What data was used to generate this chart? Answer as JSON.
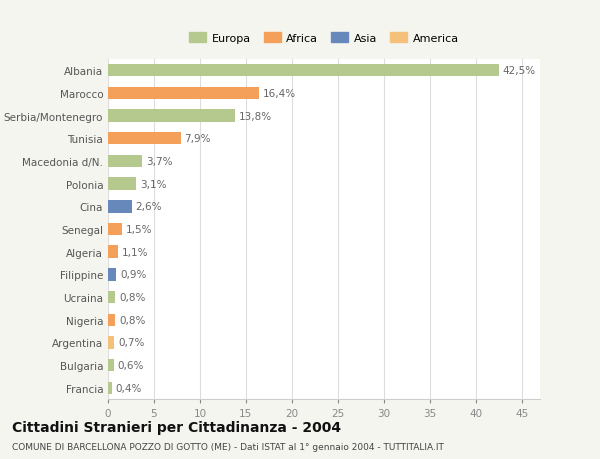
{
  "categories": [
    "Francia",
    "Bulgaria",
    "Argentina",
    "Nigeria",
    "Ucraina",
    "Filippine",
    "Algeria",
    "Senegal",
    "Cina",
    "Polonia",
    "Macedonia d/N.",
    "Tunisia",
    "Serbia/Montenegro",
    "Marocco",
    "Albania"
  ],
  "values": [
    0.4,
    0.6,
    0.7,
    0.8,
    0.8,
    0.9,
    1.1,
    1.5,
    2.6,
    3.1,
    3.7,
    7.9,
    13.8,
    16.4,
    42.5
  ],
  "labels": [
    "0,4%",
    "0,6%",
    "0,7%",
    "0,8%",
    "0,8%",
    "0,9%",
    "1,1%",
    "1,5%",
    "2,6%",
    "3,1%",
    "3,7%",
    "7,9%",
    "13,8%",
    "16,4%",
    "42,5%"
  ],
  "colors": [
    "#b5c98e",
    "#b5c98e",
    "#f5c07a",
    "#f5a05a",
    "#b5c98e",
    "#6688bb",
    "#f5a05a",
    "#f5a05a",
    "#6688bb",
    "#b5c98e",
    "#b5c98e",
    "#f5a05a",
    "#b5c98e",
    "#f5a05a",
    "#b5c98e"
  ],
  "legend_labels": [
    "Europa",
    "Africa",
    "Asia",
    "America"
  ],
  "legend_colors": [
    "#b5c98e",
    "#f5a05a",
    "#6688bb",
    "#f5c07a"
  ],
  "title": "Cittadini Stranieri per Cittadinanza - 2004",
  "subtitle": "COMUNE DI BARCELLONA POZZO DI GOTTO (ME) - Dati ISTAT al 1° gennaio 2004 - TUTTITALIA.IT",
  "xlim": [
    0,
    47
  ],
  "xticks": [
    0,
    5,
    10,
    15,
    20,
    25,
    30,
    35,
    40,
    45
  ],
  "background_color": "#f5f5f0",
  "plot_bg_color": "#ffffff",
  "grid_color": "#dddddd",
  "bar_height": 0.55,
  "label_fontsize": 7.5,
  "tick_fontsize": 7.5,
  "title_fontsize": 10,
  "subtitle_fontsize": 6.5
}
